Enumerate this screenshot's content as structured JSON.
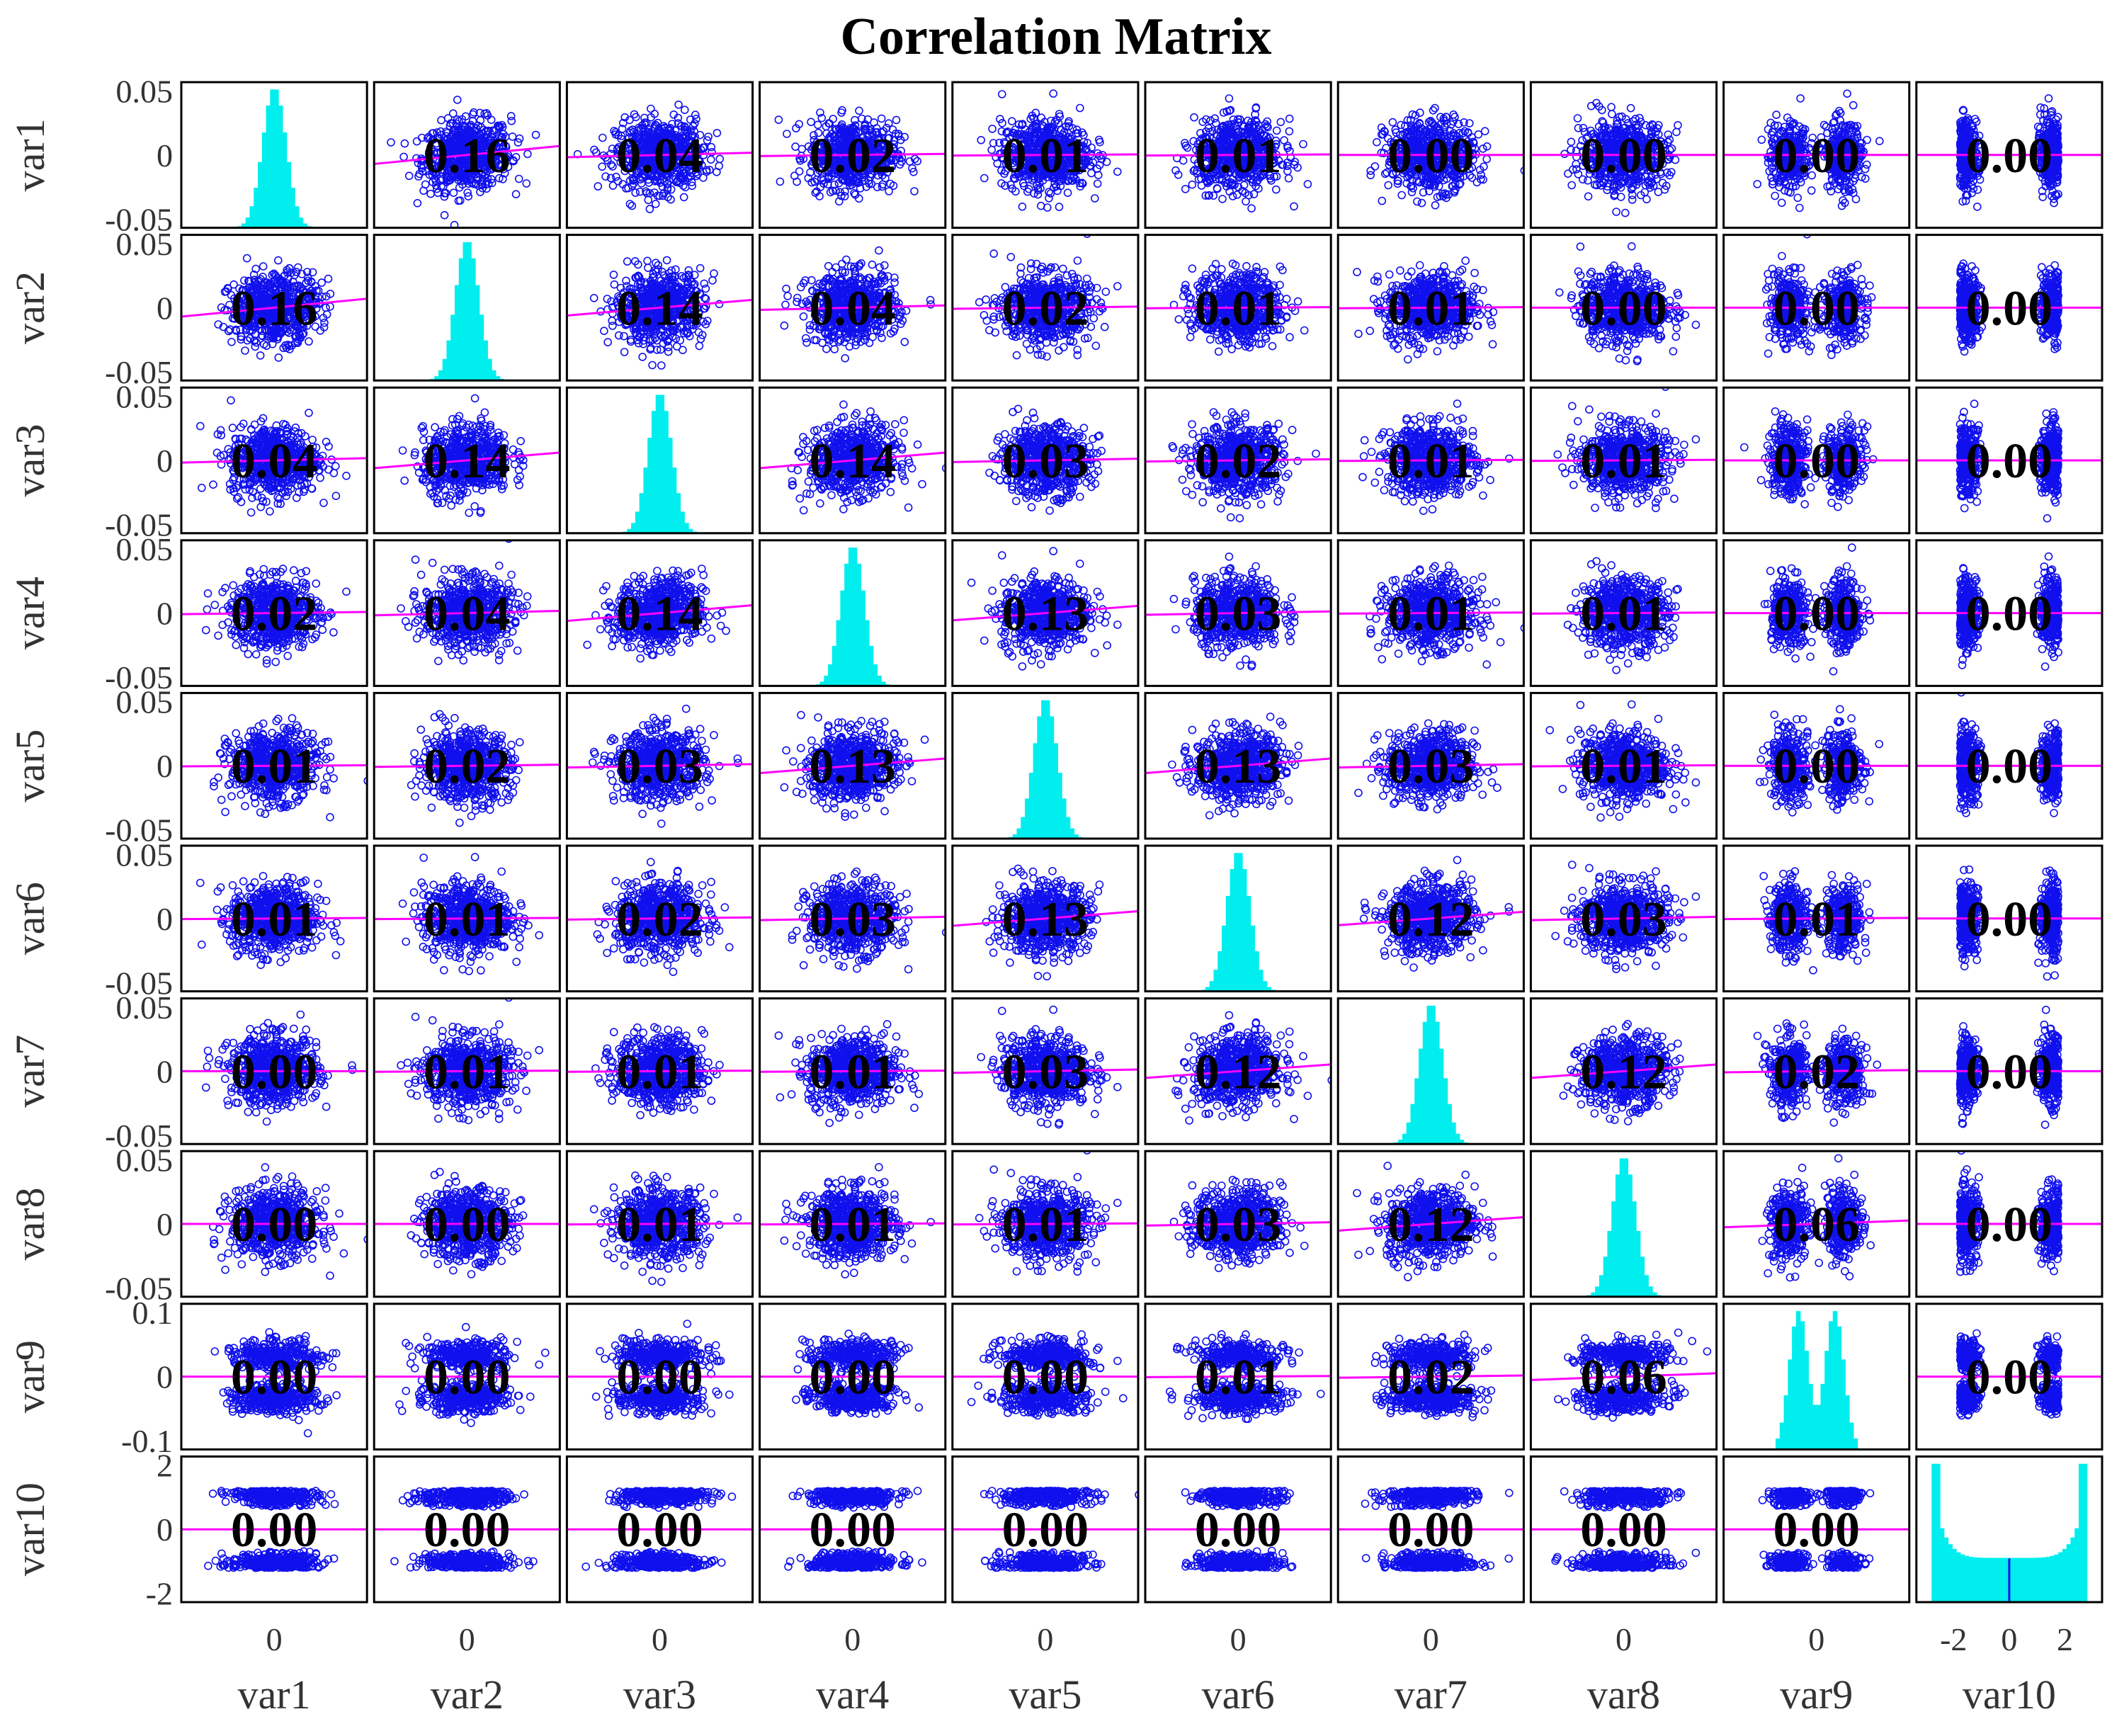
{
  "chart_data": {
    "type": "scatter",
    "title": "Correlation Matrix",
    "variables": [
      "var1",
      "var2",
      "var3",
      "var4",
      "var5",
      "var6",
      "var7",
      "var8",
      "var9",
      "var10"
    ],
    "correlation_labels": [
      [
        null,
        "0.16",
        "0.04",
        "0.02",
        "0.01",
        "0.01",
        "0.00",
        "0.00",
        "0.00",
        "0.00"
      ],
      [
        "0.16",
        null,
        "0.14",
        "0.04",
        "0.02",
        "0.01",
        "0.01",
        "0.00",
        "0.00",
        "0.00"
      ],
      [
        "0.04",
        "0.14",
        null,
        "0.14",
        "0.03",
        "0.02",
        "0.01",
        "0.01",
        "0.00",
        "0.00"
      ],
      [
        "0.02",
        "0.04",
        "0.14",
        null,
        "0.13",
        "0.03",
        "0.01",
        "0.01",
        "0.00",
        "0.00"
      ],
      [
        "0.01",
        "0.02",
        "0.03",
        "0.13",
        null,
        "0.13",
        "0.03",
        "0.01",
        "0.00",
        "0.00"
      ],
      [
        "0.01",
        "0.01",
        "0.02",
        "0.03",
        "0.13",
        null,
        "0.12",
        "0.03",
        "0.01",
        "0.00"
      ],
      [
        "0.00",
        "0.01",
        "0.01",
        "0.01",
        "0.03",
        "0.12",
        null,
        "0.12",
        "0.02",
        "0.00"
      ],
      [
        "0.00",
        "0.00",
        "0.01",
        "0.01",
        "0.01",
        "0.03",
        "0.12",
        null,
        "0.06",
        "0.00"
      ],
      [
        "0.00",
        "0.00",
        "0.00",
        "0.00",
        "0.00",
        "0.01",
        "0.02",
        "0.06",
        null,
        "0.00"
      ],
      [
        "0.00",
        "0.00",
        "0.00",
        "0.00",
        "0.00",
        "0.00",
        "0.00",
        "0.00",
        "0.00",
        null
      ]
    ],
    "y_tick_labels": [
      [
        "0.05",
        "0",
        "-0.05"
      ],
      [
        "0.05",
        "0",
        "-0.05"
      ],
      [
        "0.05",
        "0",
        "-0.05"
      ],
      [
        "0.05",
        "0",
        "-0.05"
      ],
      [
        "0.05",
        "0",
        "-0.05"
      ],
      [
        "0.05",
        "0",
        "-0.05"
      ],
      [
        "0.05",
        "0",
        "-0.05"
      ],
      [
        "0.05",
        "0",
        "-0.05"
      ],
      [
        "0.1",
        "0",
        "-0.1"
      ],
      [
        "2",
        "0",
        "-2"
      ]
    ],
    "y_tick_values": [
      [
        0.05,
        0,
        -0.05
      ],
      [
        0.05,
        0,
        -0.05
      ],
      [
        0.05,
        0,
        -0.05
      ],
      [
        0.05,
        0,
        -0.05
      ],
      [
        0.05,
        0,
        -0.05
      ],
      [
        0.05,
        0,
        -0.05
      ],
      [
        0.05,
        0,
        -0.05
      ],
      [
        0.05,
        0,
        -0.05
      ],
      [
        0.1,
        0,
        -0.1
      ],
      [
        2,
        0,
        -2
      ]
    ],
    "axis_ranges": [
      [
        -0.06,
        0.06
      ],
      [
        -0.06,
        0.06
      ],
      [
        -0.06,
        0.06
      ],
      [
        -0.06,
        0.06
      ],
      [
        -0.06,
        0.06
      ],
      [
        -0.06,
        0.06
      ],
      [
        -0.06,
        0.06
      ],
      [
        -0.06,
        0.06
      ],
      [
        -0.15,
        0.15
      ],
      [
        -3.5,
        3.5
      ]
    ],
    "x_tick_labels": [
      [
        "0"
      ],
      [
        "0"
      ],
      [
        "0"
      ],
      [
        "0"
      ],
      [
        "0"
      ],
      [
        "0"
      ],
      [
        "0"
      ],
      [
        "0"
      ],
      [
        "0"
      ],
      [
        "-2",
        "0",
        "2"
      ]
    ],
    "x_tick_values": [
      [
        0
      ],
      [
        0
      ],
      [
        0
      ],
      [
        0
      ],
      [
        0
      ],
      [
        0
      ],
      [
        0
      ],
      [
        0
      ],
      [
        0
      ],
      [
        -2,
        0,
        2
      ]
    ],
    "distributions": [
      "normal",
      "normal",
      "normal",
      "normal",
      "normal",
      "normal",
      "normal",
      "normal",
      "bimodal",
      "u-shaped"
    ],
    "grid": false,
    "legend": "none",
    "colors": {
      "scatter": "#1010ee",
      "fit_line": "#ff00ff",
      "histogram": "#00eeee",
      "text": "#000000",
      "axis_text": "#333333",
      "border": "#000000"
    }
  }
}
